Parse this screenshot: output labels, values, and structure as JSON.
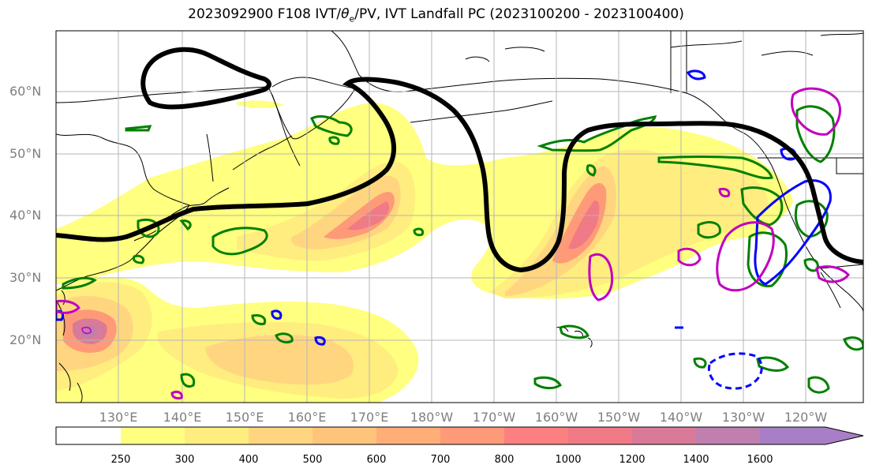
{
  "title": {
    "prefix": "2023092900 F108 IVT/",
    "theta": "θ",
    "theta_sub": "e",
    "suffix": "/PV, IVT Landfall PC (2023100200 - 2023100400)"
  },
  "lat_labels": [
    "60°N",
    "50°N",
    "40°N",
    "30°N",
    "20°N"
  ],
  "lon_labels": [
    "130°E",
    "140°E",
    "150°E",
    "160°E",
    "170°E",
    "180°W",
    "170°W",
    "160°W",
    "150°W",
    "140°W",
    "130°W",
    "120°W"
  ],
  "colorbar": {
    "levels": [
      "250",
      "300",
      "400",
      "500",
      "600",
      "700",
      "800",
      "1000",
      "1200",
      "1400",
      "1600"
    ],
    "colors": [
      "#ffff80",
      "#ffed7f",
      "#ffd67f",
      "#ffc47c",
      "#ffae78",
      "#ff9a78",
      "#fd8080",
      "#f07a85",
      "#d97b98",
      "#c07fae",
      "#a87fc6"
    ]
  },
  "legend_colors": {
    "pv_contour": "#000000",
    "theta_e_contour": "#008000",
    "ivt_pc_positive": "#0000ff",
    "ivt_pc_negative": "#c000c0"
  }
}
